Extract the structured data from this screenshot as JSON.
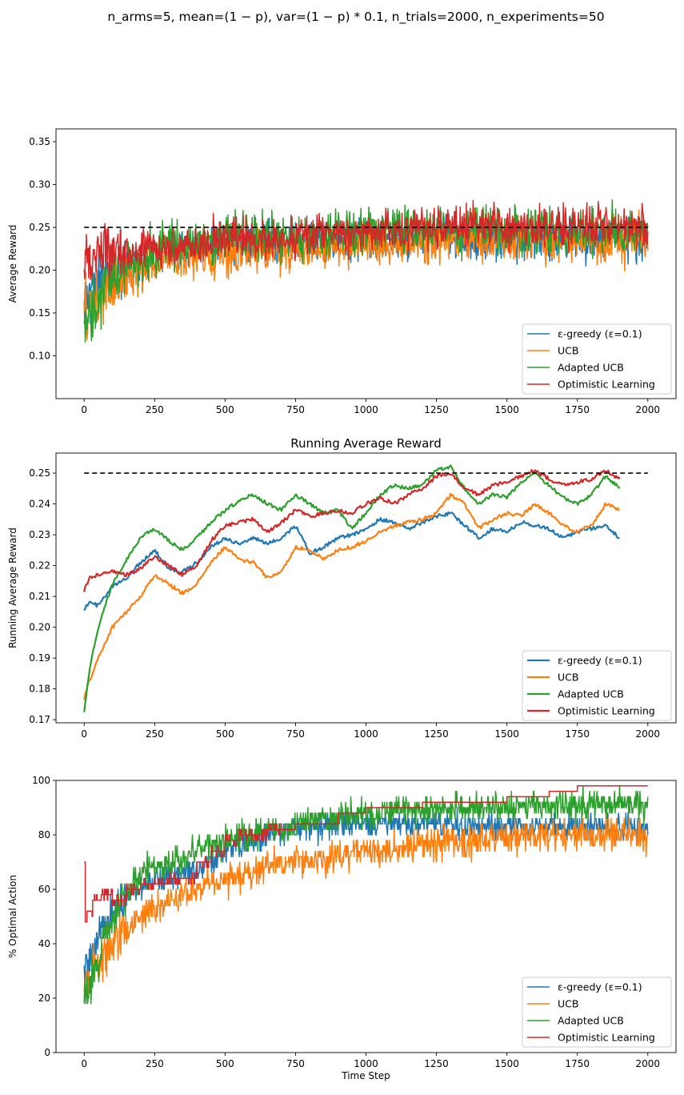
{
  "figure": {
    "suptitle": "n_arms=5, mean=(1 − p), var=(1 − p) * 0.1, n_trials=2000, n_experiments=50",
    "colors": {
      "egreedy": "#1f77b4",
      "ucb": "#ff7f0e",
      "adapted": "#2ca02c",
      "optimistic": "#d62728",
      "baseline": "#000000"
    }
  },
  "chart_data": [
    {
      "type": "line",
      "title": "",
      "xlabel": "",
      "ylabel": "Average Reward",
      "xlim": [
        -100,
        2100
      ],
      "ylim": [
        0.05,
        0.365
      ],
      "xticks": [
        0,
        250,
        500,
        750,
        1000,
        1250,
        1500,
        1750,
        2000
      ],
      "yticks": [
        0.1,
        0.15,
        0.2,
        0.25,
        0.3,
        0.35
      ],
      "ytick_labels": [
        "0.10",
        "0.15",
        "0.20",
        "0.25",
        "0.30",
        "0.35"
      ],
      "legend": "lower-right",
      "reference_line": {
        "y": 0.25,
        "x": [
          0,
          2000
        ],
        "style": "dashed"
      },
      "series": [
        {
          "name": "ε-greedy (ε=0.1)",
          "color_key": "egreedy",
          "x": [
            0,
            100,
            250,
            500,
            750,
            1000,
            1250,
            1500,
            1750,
            2000
          ],
          "values": [
            0.17,
            0.2,
            0.22,
            0.23,
            0.235,
            0.235,
            0.24,
            0.235,
            0.235,
            0.235
          ],
          "spread": 0.035
        },
        {
          "name": "UCB",
          "color_key": "ucb",
          "x": [
            0,
            100,
            250,
            500,
            750,
            1000,
            1250,
            1500,
            1750,
            2000
          ],
          "values": [
            0.15,
            0.18,
            0.21,
            0.22,
            0.225,
            0.23,
            0.235,
            0.235,
            0.235,
            0.235
          ],
          "spread": 0.04
        },
        {
          "name": "Adapted UCB",
          "color_key": "adapted",
          "x": [
            0,
            100,
            250,
            500,
            750,
            1000,
            1250,
            1500,
            1750,
            2000
          ],
          "values": [
            0.13,
            0.19,
            0.225,
            0.24,
            0.24,
            0.245,
            0.25,
            0.245,
            0.245,
            0.245
          ],
          "spread": 0.04
        },
        {
          "name": "Optimistic Learning",
          "color_key": "optimistic",
          "x": [
            0,
            100,
            250,
            500,
            750,
            1000,
            1250,
            1500,
            1750,
            2000
          ],
          "values": [
            0.22,
            0.22,
            0.225,
            0.235,
            0.24,
            0.245,
            0.25,
            0.25,
            0.25,
            0.25
          ],
          "spread": 0.035
        }
      ]
    },
    {
      "type": "line",
      "title": "Running Average Reward",
      "xlabel": "",
      "ylabel": "Running Average Reward",
      "xlim": [
        -100,
        2100
      ],
      "ylim": [
        0.169,
        0.2565
      ],
      "xticks": [
        0,
        250,
        500,
        750,
        1000,
        1250,
        1500,
        1750,
        2000
      ],
      "yticks": [
        0.17,
        0.18,
        0.19,
        0.2,
        0.21,
        0.22,
        0.23,
        0.24,
        0.25
      ],
      "ytick_labels": [
        "0.17",
        "0.18",
        "0.19",
        "0.20",
        "0.21",
        "0.22",
        "0.23",
        "0.24",
        "0.25"
      ],
      "legend": "lower-right",
      "reference_line": {
        "y": 0.25,
        "x": [
          0,
          2000
        ],
        "style": "dashed"
      },
      "series": [
        {
          "name": "ε-greedy (ε=0.1)",
          "color_key": "egreedy",
          "x": [
            0,
            20,
            50,
            100,
            150,
            200,
            250,
            300,
            350,
            400,
            450,
            500,
            550,
            600,
            650,
            700,
            750,
            800,
            850,
            900,
            950,
            1000,
            1050,
            1100,
            1150,
            1200,
            1250,
            1300,
            1350,
            1400,
            1450,
            1500,
            1550,
            1600,
            1650,
            1700,
            1750,
            1800,
            1850,
            1900
          ],
          "values": [
            0.206,
            0.208,
            0.207,
            0.213,
            0.216,
            0.221,
            0.225,
            0.219,
            0.218,
            0.221,
            0.226,
            0.229,
            0.227,
            0.229,
            0.227,
            0.229,
            0.233,
            0.224,
            0.226,
            0.229,
            0.23,
            0.232,
            0.235,
            0.234,
            0.232,
            0.234,
            0.236,
            0.237,
            0.233,
            0.229,
            0.232,
            0.231,
            0.234,
            0.233,
            0.232,
            0.229,
            0.231,
            0.232,
            0.233,
            0.229
          ]
        },
        {
          "name": "UCB",
          "color_key": "ucb",
          "x": [
            0,
            20,
            50,
            100,
            150,
            200,
            250,
            300,
            350,
            400,
            450,
            500,
            550,
            600,
            650,
            700,
            750,
            800,
            850,
            900,
            950,
            1000,
            1050,
            1100,
            1150,
            1200,
            1250,
            1300,
            1350,
            1400,
            1450,
            1500,
            1550,
            1600,
            1650,
            1700,
            1750,
            1800,
            1850,
            1900
          ],
          "values": [
            0.177,
            0.183,
            0.19,
            0.2,
            0.205,
            0.21,
            0.217,
            0.214,
            0.211,
            0.214,
            0.221,
            0.226,
            0.222,
            0.221,
            0.216,
            0.218,
            0.226,
            0.225,
            0.222,
            0.225,
            0.226,
            0.228,
            0.231,
            0.233,
            0.234,
            0.235,
            0.237,
            0.243,
            0.24,
            0.232,
            0.235,
            0.237,
            0.236,
            0.24,
            0.237,
            0.233,
            0.231,
            0.233,
            0.24,
            0.238
          ]
        },
        {
          "name": "Adapted UCB",
          "color_key": "adapted",
          "x": [
            0,
            20,
            50,
            100,
            150,
            200,
            250,
            300,
            350,
            400,
            450,
            500,
            550,
            600,
            650,
            700,
            750,
            800,
            850,
            900,
            950,
            1000,
            1050,
            1100,
            1150,
            1200,
            1250,
            1300,
            1350,
            1400,
            1450,
            1500,
            1550,
            1600,
            1650,
            1700,
            1750,
            1800,
            1850,
            1900
          ],
          "values": [
            0.173,
            0.187,
            0.2,
            0.214,
            0.222,
            0.229,
            0.232,
            0.228,
            0.225,
            0.229,
            0.234,
            0.238,
            0.241,
            0.243,
            0.24,
            0.238,
            0.243,
            0.24,
            0.237,
            0.238,
            0.232,
            0.237,
            0.243,
            0.246,
            0.245,
            0.246,
            0.251,
            0.252,
            0.245,
            0.24,
            0.243,
            0.242,
            0.247,
            0.25,
            0.246,
            0.242,
            0.24,
            0.243,
            0.249,
            0.245
          ]
        },
        {
          "name": "Optimistic Learning",
          "color_key": "optimistic",
          "x": [
            0,
            20,
            50,
            100,
            150,
            200,
            250,
            300,
            350,
            400,
            450,
            500,
            550,
            600,
            650,
            700,
            750,
            800,
            850,
            900,
            950,
            1000,
            1050,
            1100,
            1150,
            1200,
            1250,
            1300,
            1350,
            1400,
            1450,
            1500,
            1550,
            1600,
            1650,
            1700,
            1750,
            1800,
            1850,
            1900
          ],
          "values": [
            0.212,
            0.216,
            0.217,
            0.218,
            0.217,
            0.219,
            0.223,
            0.22,
            0.217,
            0.22,
            0.228,
            0.233,
            0.234,
            0.235,
            0.231,
            0.234,
            0.238,
            0.236,
            0.237,
            0.238,
            0.237,
            0.24,
            0.242,
            0.24,
            0.243,
            0.245,
            0.249,
            0.25,
            0.245,
            0.243,
            0.246,
            0.247,
            0.249,
            0.251,
            0.248,
            0.246,
            0.247,
            0.248,
            0.251,
            0.248
          ]
        }
      ]
    },
    {
      "type": "line",
      "title": "",
      "xlabel": "Time Step",
      "ylabel": "% Optimal Action",
      "xlim": [
        -100,
        2100
      ],
      "ylim": [
        0,
        100
      ],
      "xticks": [
        0,
        250,
        500,
        750,
        1000,
        1250,
        1500,
        1750,
        2000
      ],
      "yticks": [
        0,
        20,
        40,
        60,
        80,
        100
      ],
      "ytick_labels": [
        "0",
        "20",
        "40",
        "60",
        "80",
        "100"
      ],
      "legend": "lower-right",
      "series": [
        {
          "name": "ε-greedy (ε=0.1)",
          "color_key": "egreedy",
          "x": [
            0,
            50,
            100,
            200,
            300,
            400,
            500,
            600,
            750,
            1000,
            1250,
            1500,
            1750,
            2000
          ],
          "values": [
            30,
            40,
            52,
            62,
            64,
            68,
            74,
            78,
            82,
            84,
            84,
            83,
            83,
            83
          ],
          "spread": 7
        },
        {
          "name": "UCB",
          "color_key": "ucb",
          "x": [
            0,
            50,
            100,
            200,
            300,
            400,
            500,
            600,
            750,
            1000,
            1250,
            1500,
            1750,
            2000
          ],
          "values": [
            25,
            32,
            40,
            50,
            55,
            60,
            64,
            67,
            70,
            74,
            77,
            79,
            80,
            80
          ],
          "spread": 9
        },
        {
          "name": "Adapted UCB",
          "color_key": "adapted",
          "x": [
            0,
            50,
            100,
            200,
            300,
            400,
            500,
            600,
            750,
            1000,
            1250,
            1500,
            1750,
            2000
          ],
          "values": [
            20,
            35,
            50,
            66,
            70,
            74,
            78,
            80,
            84,
            88,
            90,
            90,
            91,
            91
          ],
          "spread": 8
        },
        {
          "name": "Optimistic Learning",
          "color_key": "optimistic",
          "steps": true,
          "x": [
            0,
            3,
            10,
            30,
            60,
            100,
            150,
            200,
            300,
            400,
            450,
            500,
            550,
            650,
            750,
            900,
            1000,
            1100,
            1200,
            1300,
            1400,
            1500,
            1570,
            1650,
            1750,
            1850,
            2000
          ],
          "values": [
            70,
            48,
            52,
            56,
            58,
            56,
            60,
            62,
            64,
            70,
            74,
            78,
            80,
            82,
            84,
            88,
            90,
            90,
            92,
            92,
            92,
            94,
            94,
            96,
            98,
            98,
            98
          ]
        }
      ]
    }
  ]
}
